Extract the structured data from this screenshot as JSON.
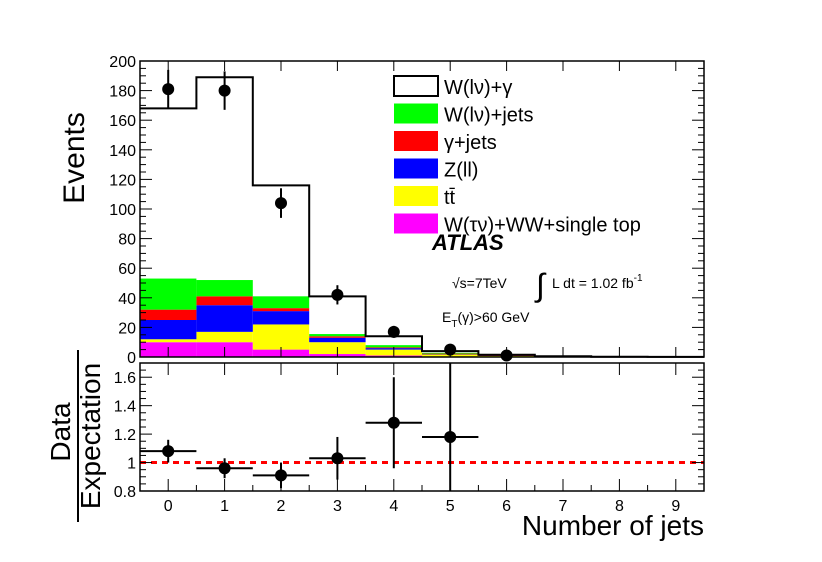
{
  "chart_data": [
    {
      "type": "bar",
      "subtype": "stacked-histogram",
      "ylabel": "Events",
      "ylim": [
        0,
        200
      ],
      "yticks": [
        0,
        20,
        40,
        60,
        80,
        100,
        120,
        140,
        160,
        180,
        200
      ],
      "xlim": [
        -0.5,
        9.5
      ],
      "xticks": [
        0,
        1,
        2,
        3,
        4,
        5,
        6,
        7,
        8,
        9
      ],
      "categories": [
        0,
        1,
        2,
        3,
        4,
        5,
        6,
        7,
        8,
        9
      ],
      "stack": [
        {
          "name": "W(τν)+WW+single top",
          "color": "#ff00ff",
          "values": [
            10,
            10,
            5,
            2,
            1,
            0.3,
            0.2,
            0.1,
            0.05,
            0.05
          ]
        },
        {
          "name": "tt̄",
          "color": "#ffff00",
          "values": [
            2,
            7,
            17,
            8,
            4,
            1.5,
            0.8,
            0.3,
            0.1,
            0
          ]
        },
        {
          "name": "Z(ll)",
          "color": "#0000ff",
          "values": [
            13,
            18,
            9,
            3,
            1,
            0.3,
            0.1,
            0,
            0,
            0
          ]
        },
        {
          "name": "γ+jets",
          "color": "#ff0000",
          "values": [
            7,
            6,
            2,
            1,
            0.5,
            0.2,
            0.1,
            0,
            0,
            0
          ]
        },
        {
          "name": "W(lν)+jets",
          "color": "#00ff00",
          "values": [
            21,
            11,
            8,
            1.5,
            1.5,
            0.5,
            0.2,
            0,
            0,
            0
          ]
        }
      ],
      "total": {
        "name": "W(lν)+γ",
        "color": "#000000",
        "values": [
          168,
          189,
          116,
          41,
          14,
          4,
          1.5,
          0.5,
          0.2,
          0.1
        ]
      },
      "data": {
        "x": [
          0,
          1,
          2,
          3,
          4,
          5,
          6
        ],
        "y": [
          181,
          180,
          104,
          42,
          17,
          5,
          1
        ],
        "yerr": [
          13,
          13,
          10,
          6.5,
          4,
          2.2,
          1
        ]
      },
      "legend": {
        "placement": "top-right",
        "entries": [
          {
            "label": "W(lν)+γ",
            "style": "line",
            "color": "#000000"
          },
          {
            "label": "W(lν)+jets",
            "style": "fill",
            "color": "#00ff00"
          },
          {
            "label": "γ+jets",
            "style": "fill",
            "color": "#ff0000"
          },
          {
            "label": "Z(ll)",
            "style": "fill",
            "color": "#0000ff"
          },
          {
            "label": "tt̄",
            "style": "fill",
            "color": "#ffff00"
          },
          {
            "label": "W(τν)+WW+single top",
            "style": "fill",
            "color": "#ff00ff"
          }
        ]
      },
      "annotations": {
        "experiment": "ATLAS",
        "energy": "√s=7TeV",
        "lumi_prefix": "L dt = 1.02 fb",
        "lumi_exponent": "-1",
        "cut_prefix": "E",
        "cut_subscript": "T",
        "cut_suffix": "(γ)>60 GeV"
      }
    },
    {
      "type": "scatter",
      "subtype": "ratio",
      "ylabel_numerator": "Data",
      "ylabel_denominator": "Expectation",
      "xlabel": "Number of jets",
      "ylim": [
        0.8,
        1.7
      ],
      "yticks": [
        0.8,
        1,
        1.2,
        1.4,
        1.6
      ],
      "ytick_labels": [
        "0.8",
        "1",
        "1.2",
        "1.4",
        "1.6"
      ],
      "xlim": [
        -0.5,
        9.5
      ],
      "xticks": [
        0,
        1,
        2,
        3,
        4,
        5,
        6,
        7,
        8,
        9
      ],
      "reference_line": {
        "y": 1,
        "color": "#ff0000",
        "style": "dashed"
      },
      "points": {
        "x": [
          0,
          1,
          2,
          3,
          4,
          5
        ],
        "y": [
          1.08,
          0.96,
          0.91,
          1.03,
          1.28,
          1.18
        ],
        "yerr_up": [
          0.08,
          0.07,
          0.09,
          0.15,
          0.32,
          0.55
        ],
        "yerr_down": [
          0.08,
          0.07,
          0.09,
          0.15,
          0.32,
          0.55
        ]
      }
    }
  ]
}
